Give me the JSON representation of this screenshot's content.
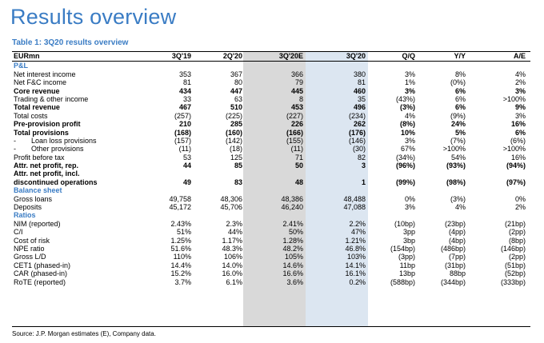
{
  "title": "Results overview",
  "table_title": "Table 1: 3Q20 results overview",
  "columns": [
    "EURmn",
    "3Q'19",
    "2Q'20",
    "3Q'20E",
    "3Q'20",
    "Q/Q",
    "Y/Y",
    "A/E"
  ],
  "rows": [
    {
      "type": "section",
      "label": "P&L"
    },
    {
      "label": "Net interest income",
      "values": [
        "353",
        "367",
        "366",
        "380",
        "3%",
        "8%",
        "4%"
      ]
    },
    {
      "label": "Net F&C income",
      "values": [
        "81",
        "80",
        "79",
        "81",
        "1%",
        "(0%)",
        "2%"
      ]
    },
    {
      "label": "Core revenue",
      "bold": true,
      "values": [
        "434",
        "447",
        "445",
        "460",
        "3%",
        "6%",
        "3%"
      ]
    },
    {
      "label": "Trading & other income",
      "values": [
        "33",
        "63",
        "8",
        "35",
        "(43%)",
        "6%",
        ">100%"
      ]
    },
    {
      "label": "Total revenue",
      "bold": true,
      "values": [
        "467",
        "510",
        "453",
        "496",
        "(3%)",
        "6%",
        "9%"
      ]
    },
    {
      "label": "Total costs",
      "values": [
        "(257)",
        "(225)",
        "(227)",
        "(234)",
        "4%",
        "(9%)",
        "3%"
      ]
    },
    {
      "label": "Pre-provision profit",
      "bold": true,
      "values": [
        "210",
        "285",
        "226",
        "262",
        "(8%)",
        "24%",
        "16%"
      ]
    },
    {
      "label": "Total provisions",
      "bold": true,
      "values": [
        "(168)",
        "(160)",
        "(166)",
        "(176)",
        "10%",
        "5%",
        "6%"
      ]
    },
    {
      "label": "Loan loss provisions",
      "dash": "-",
      "values": [
        "(157)",
        "(142)",
        "(155)",
        "(146)",
        "3%",
        "(7%)",
        "(6%)"
      ]
    },
    {
      "label": "Other provisions",
      "dash": "-",
      "values": [
        "(11)",
        "(18)",
        "(11)",
        "(30)",
        "67%",
        ">100%",
        ">100%"
      ]
    },
    {
      "label": "Profit before tax",
      "values": [
        "53",
        "125",
        "71",
        "82",
        "(34%)",
        "54%",
        "16%"
      ]
    },
    {
      "label": "Attr. net profit, rep.",
      "bold": true,
      "values": [
        "44",
        "85",
        "50",
        "3",
        "(96%)",
        "(93%)",
        "(94%)"
      ]
    },
    {
      "label": "Attr. net profit, incl.",
      "label2": "discontinued operations",
      "bold": true,
      "tall": true,
      "values": [
        "49",
        "83",
        "48",
        "1",
        "(99%)",
        "(98%)",
        "(97%)"
      ]
    },
    {
      "type": "section",
      "label": "Balance sheet"
    },
    {
      "label": "Gross loans",
      "values": [
        "49,758",
        "48,306",
        "48,386",
        "48,488",
        "0%",
        "(3%)",
        "0%"
      ]
    },
    {
      "label": "Deposits",
      "values": [
        "45,172",
        "45,706",
        "46,240",
        "47,088",
        "3%",
        "4%",
        "2%"
      ]
    },
    {
      "type": "section",
      "label": "Ratios"
    },
    {
      "label": "NIM (reported)",
      "values": [
        "2.43%",
        "2.3%",
        "2.41%",
        "2.2%",
        "(10bp)",
        "(23bp)",
        "(21bp)"
      ]
    },
    {
      "label": "C/I",
      "values": [
        "51%",
        "44%",
        "50%",
        "47%",
        "3pp",
        "(4pp)",
        "(2pp)"
      ]
    },
    {
      "label": "Cost of risk",
      "values": [
        "1.25%",
        "1.17%",
        "1.28%",
        "1.21%",
        "3bp",
        "(4bp)",
        "(8bp)"
      ]
    },
    {
      "label": "NPE ratio",
      "values": [
        "51.6%",
        "48.3%",
        "48.2%",
        "46.8%",
        "(154bp)",
        "(486bp)",
        "(146bp)"
      ]
    },
    {
      "label": "Gross L/D",
      "values": [
        "110%",
        "106%",
        "105%",
        "103%",
        "(3pp)",
        "(7pp)",
        "(2pp)"
      ]
    },
    {
      "label": "CET1 (phased-in)",
      "values": [
        "14.4%",
        "14.0%",
        "14.6%",
        "14.1%",
        "11bp",
        "(31bp)",
        "(51bp)"
      ]
    },
    {
      "label": "CAR (phased-in)",
      "values": [
        "15.2%",
        "16.0%",
        "16.6%",
        "16.1%",
        "13bp",
        "88bp",
        "(52bp)"
      ]
    },
    {
      "label": "RoTE (reported)",
      "values": [
        "3.7%",
        "6.1%",
        "3.6%",
        "0.2%",
        "(588bp)",
        "(344bp)",
        "(333bp)"
      ]
    }
  ],
  "source": "Source: J.P. Morgan estimates (E), Company data.",
  "colors": {
    "accent": "#3A7CC4",
    "estimate_shade": "#D9D9D9",
    "actual_shade": "#DCE6F1"
  }
}
